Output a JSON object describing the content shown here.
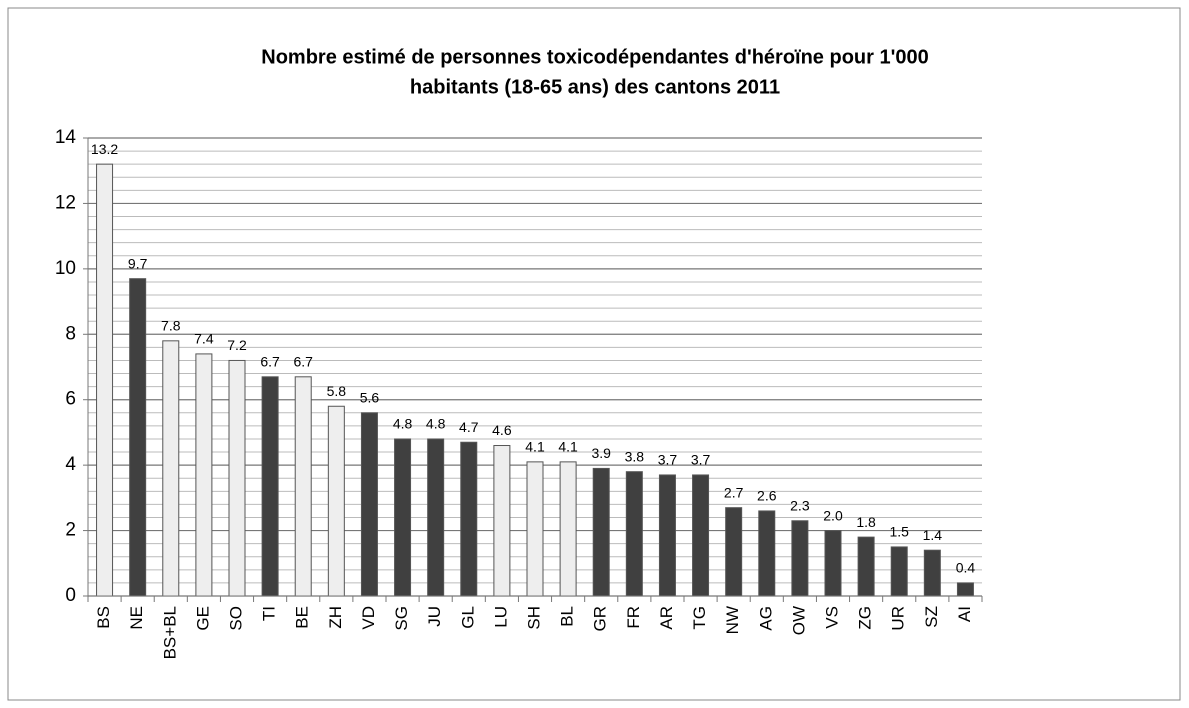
{
  "chart_data": {
    "type": "bar",
    "title_lines": [
      "Nombre estimé de personnes toxicodépendantes  d'héroïne pour 1'000",
      "habitants (18-65 ans) des cantons 2011"
    ],
    "categories": [
      "BS",
      "NE",
      "BS+BL",
      "GE",
      "SO",
      "TI",
      "BE",
      "ZH",
      "VD",
      "SG",
      "JU",
      "GL",
      "LU",
      "SH",
      "BL",
      "GR",
      "FR",
      "AR",
      "TG",
      "NW",
      "AG",
      "OW",
      "VS",
      "ZG",
      "UR",
      "SZ",
      "AI"
    ],
    "values": [
      13.2,
      9.7,
      7.8,
      7.4,
      7.2,
      6.7,
      6.7,
      5.8,
      5.6,
      4.8,
      4.8,
      4.7,
      4.6,
      4.1,
      4.1,
      3.9,
      3.8,
      3.7,
      3.7,
      2.7,
      2.6,
      2.3,
      2.0,
      1.8,
      1.5,
      1.4,
      0.4
    ],
    "value_labels": [
      "13.2",
      "9.7",
      "7.8",
      "7.4",
      "7.2",
      "6.7",
      "6.7",
      "5.8",
      "5.6",
      "4.8",
      "4.8",
      "4.7",
      "4.6",
      "4.1",
      "4.1",
      "3.9",
      "3.8",
      "3.7",
      "3.7",
      "2.7",
      "2.6",
      "2.3",
      "2.0",
      "1.8",
      "1.5",
      "1.4",
      "0.4"
    ],
    "colors": [
      "#eeeeee",
      "#404040",
      "#eeeeee",
      "#eeeeee",
      "#eeeeee",
      "#404040",
      "#eeeeee",
      "#eeeeee",
      "#404040",
      "#404040",
      "#404040",
      "#404040",
      "#eeeeee",
      "#eeeeee",
      "#eeeeee",
      "#404040",
      "#404040",
      "#404040",
      "#404040",
      "#404040",
      "#404040",
      "#404040",
      "#404040",
      "#404040",
      "#404040",
      "#404040",
      "#404040"
    ],
    "ylim": [
      0,
      14
    ],
    "yticks": [
      0,
      2,
      4,
      6,
      8,
      10,
      12,
      14
    ],
    "minor_yticks": [
      0.4,
      0.8,
      1.2,
      1.6,
      2.4,
      2.8,
      3.2,
      3.6,
      4.4,
      4.8,
      5.2,
      5.6,
      6.4,
      6.8,
      7.2,
      7.6,
      8.4,
      8.8,
      9.2,
      9.6,
      10.4,
      10.8,
      11.2,
      11.6,
      12.4,
      12.8,
      13.2,
      13.6
    ],
    "grid": true
  }
}
